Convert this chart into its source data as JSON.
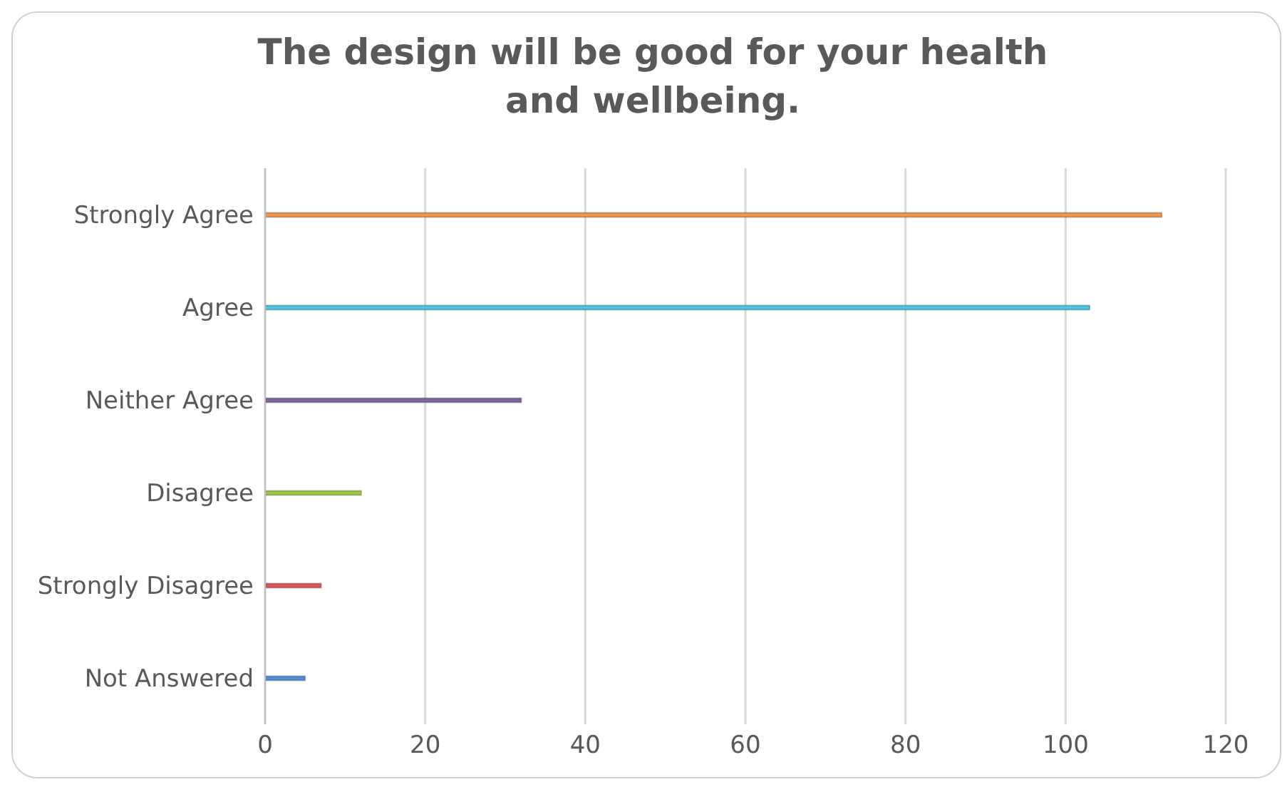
{
  "chart_data": {
    "type": "bar",
    "orientation": "horizontal",
    "title": "The design will be good for your health and wellbeing.",
    "categories": [
      "Strongly Agree",
      "Agree",
      "Neither Agree",
      "Disagree",
      "Strongly Disagree",
      "Not Answered"
    ],
    "values": [
      112,
      103,
      32,
      12,
      7,
      5
    ],
    "colors": [
      "#f79646",
      "#4bc9e6",
      "#8064a2",
      "#9bcb3c",
      "#e05555",
      "#4f8fd8"
    ],
    "xlim": [
      0,
      120
    ],
    "xticks": [
      0,
      20,
      40,
      60,
      80,
      100,
      120
    ],
    "grid": "x",
    "legend": false
  }
}
